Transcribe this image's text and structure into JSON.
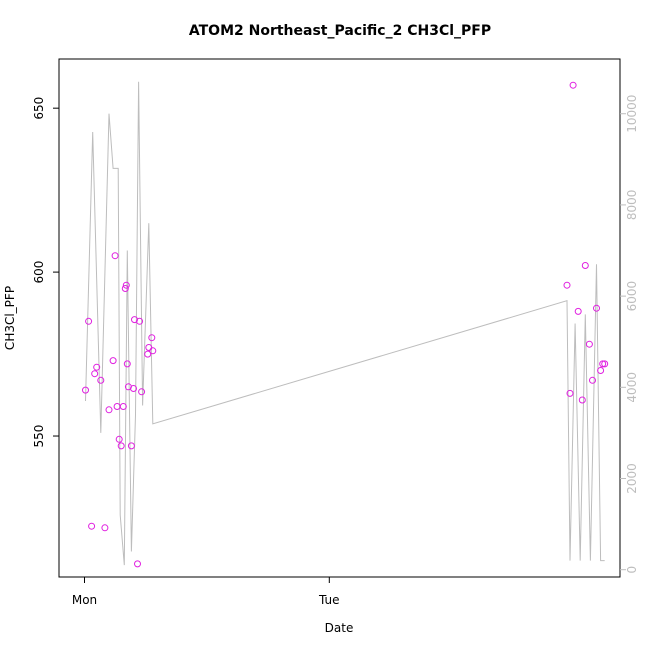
{
  "chart_data": {
    "type": "scatter",
    "title": "ATOM2 Northeast_Pacific_2 CH3Cl_PFP",
    "xlabel": "Date",
    "ylabel": "CH3Cl_PFP",
    "x_ticks": [
      "Mon",
      "Tue"
    ],
    "y_ticks": [
      550,
      600,
      650
    ],
    "y2_ticks": [
      0,
      2000,
      4000,
      6000,
      8000,
      10000
    ],
    "ylim": [
      507,
      665
    ],
    "y2lim": [
      -160,
      11200
    ],
    "grid": false,
    "colors": {
      "points": "#e020e0",
      "line": "#bdbdbd",
      "axis": "#000000",
      "right_axis": "#bdbdbd"
    },
    "series": [
      {
        "type": "scatter",
        "values_axis": "left",
        "points": [
          {
            "x": 0.1,
            "y": 564
          },
          {
            "x": 0.4,
            "y": 585
          },
          {
            "x": 0.7,
            "y": 522.5
          },
          {
            "x": 1.0,
            "y": 569
          },
          {
            "x": 1.2,
            "y": 571
          },
          {
            "x": 1.6,
            "y": 567
          },
          {
            "x": 2.0,
            "y": 522
          },
          {
            "x": 2.4,
            "y": 558
          },
          {
            "x": 2.8,
            "y": 573
          },
          {
            "x": 3.0,
            "y": 605
          },
          {
            "x": 3.2,
            "y": 559
          },
          {
            "x": 3.4,
            "y": 549
          },
          {
            "x": 3.6,
            "y": 547
          },
          {
            "x": 3.8,
            "y": 559
          },
          {
            "x": 4.0,
            "y": 595
          },
          {
            "x": 4.1,
            "y": 596
          },
          {
            "x": 4.2,
            "y": 572
          },
          {
            "x": 4.3,
            "y": 565
          },
          {
            "x": 4.6,
            "y": 547
          },
          {
            "x": 4.8,
            "y": 564.5
          },
          {
            "x": 4.9,
            "y": 585.5
          },
          {
            "x": 5.2,
            "y": 511
          },
          {
            "x": 5.4,
            "y": 585
          },
          {
            "x": 5.6,
            "y": 563.5
          },
          {
            "x": 6.2,
            "y": 575
          },
          {
            "x": 6.3,
            "y": 577
          },
          {
            "x": 6.6,
            "y": 580
          },
          {
            "x": 6.7,
            "y": 576
          },
          {
            "x": 47.3,
            "y": 596
          },
          {
            "x": 47.6,
            "y": 563
          },
          {
            "x": 47.9,
            "y": 657
          },
          {
            "x": 48.4,
            "y": 588
          },
          {
            "x": 48.8,
            "y": 561
          },
          {
            "x": 49.1,
            "y": 602
          },
          {
            "x": 49.5,
            "y": 578
          },
          {
            "x": 49.8,
            "y": 567
          },
          {
            "x": 50.2,
            "y": 589
          },
          {
            "x": 50.6,
            "y": 570
          },
          {
            "x": 50.8,
            "y": 572
          },
          {
            "x": 51.0,
            "y": 572
          }
        ]
      },
      {
        "type": "line",
        "values_axis": "right",
        "points": [
          {
            "x": 0.1,
            "y": 3700
          },
          {
            "x": 0.8,
            "y": 9600
          },
          {
            "x": 1.6,
            "y": 3000
          },
          {
            "x": 2.4,
            "y": 10000
          },
          {
            "x": 2.8,
            "y": 8800
          },
          {
            "x": 3.3,
            "y": 8800
          },
          {
            "x": 3.5,
            "y": 1200
          },
          {
            "x": 3.9,
            "y": 100
          },
          {
            "x": 4.2,
            "y": 7000
          },
          {
            "x": 4.6,
            "y": 400
          },
          {
            "x": 5.0,
            "y": 3400
          },
          {
            "x": 5.3,
            "y": 10700
          },
          {
            "x": 5.7,
            "y": 3600
          },
          {
            "x": 6.3,
            "y": 7600
          },
          {
            "x": 6.7,
            "y": 3200
          },
          {
            "x": 47.3,
            "y": 5900
          },
          {
            "x": 47.6,
            "y": 200
          },
          {
            "x": 48.1,
            "y": 5400
          },
          {
            "x": 48.6,
            "y": 200
          },
          {
            "x": 49.1,
            "y": 5600
          },
          {
            "x": 49.6,
            "y": 200
          },
          {
            "x": 50.2,
            "y": 6700
          },
          {
            "x": 50.6,
            "y": 200
          },
          {
            "x": 51.0,
            "y": 200
          }
        ]
      }
    ]
  }
}
